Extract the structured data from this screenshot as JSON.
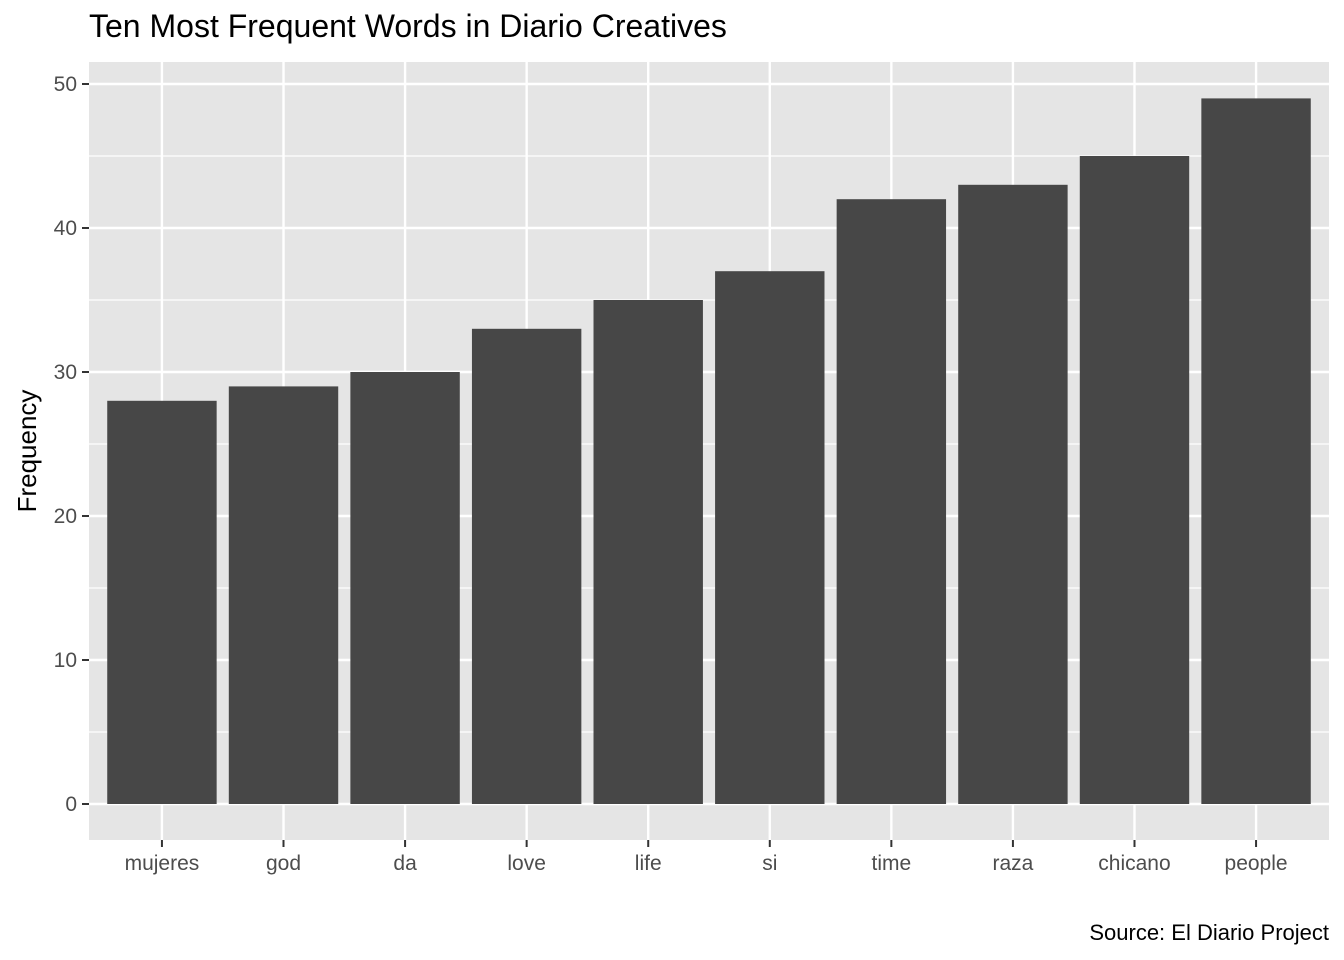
{
  "chart_data": {
    "type": "bar",
    "title": "Ten Most Frequent Words in Diario Creatives",
    "caption": "Source: El Diario Project",
    "xlabel": "",
    "ylabel": "Frequency",
    "categories": [
      "mujeres",
      "god",
      "da",
      "love",
      "life",
      "si",
      "time",
      "raza",
      "chicano",
      "people"
    ],
    "values": [
      28,
      29,
      30,
      33,
      35,
      37,
      42,
      43,
      45,
      49
    ],
    "ylim": [
      0,
      50
    ],
    "yticks": [
      "0",
      "10",
      "20",
      "30",
      "40",
      "50"
    ],
    "grid": true,
    "legend": "none",
    "colors": {
      "bar": "#474747",
      "panel": "#e5e5e5",
      "grid": "#ffffff"
    }
  }
}
